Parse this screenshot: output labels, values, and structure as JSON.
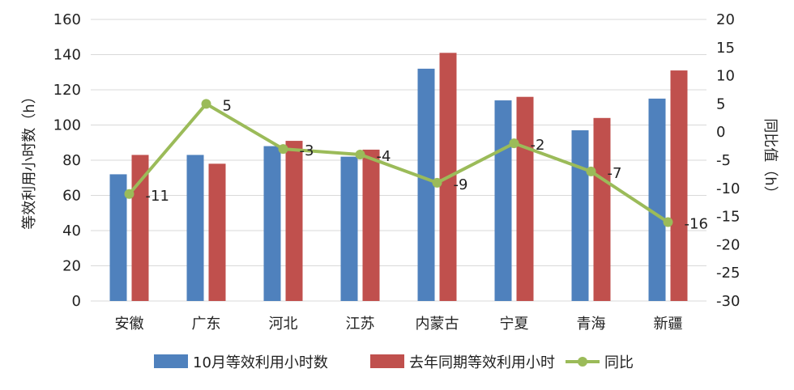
{
  "chart_data": {
    "type": "bar",
    "categories": [
      "安徽",
      "广东",
      "河北",
      "江苏",
      "内蒙古",
      "宁夏",
      "青海",
      "新疆"
    ],
    "series": [
      {
        "name": "10月等效利用小时数",
        "kind": "bar",
        "axis": "left",
        "color": "#4F81BD",
        "values": [
          72,
          83,
          88,
          82,
          132,
          114,
          97,
          115
        ]
      },
      {
        "name": "去年同期等效利用小时",
        "kind": "bar",
        "axis": "left",
        "color": "#C0504D",
        "values": [
          83,
          78,
          91,
          86,
          141,
          116,
          104,
          131
        ]
      },
      {
        "name": "同比",
        "kind": "line",
        "axis": "right",
        "color": "#9BBB59",
        "values": [
          -11,
          5,
          -3,
          -4,
          -9,
          -2,
          -7,
          -16
        ]
      }
    ],
    "ylabel": "等效利用小时数（h）",
    "ylabel_right": "同比值（h）",
    "ylim": [
      0,
      160
    ],
    "ylim_right": [
      -30,
      20
    ],
    "y_ticks": [
      "0",
      "20",
      "40",
      "60",
      "80",
      "100",
      "120",
      "140",
      "160"
    ],
    "y_ticks_right": [
      "-30",
      "-25",
      "-20",
      "-15",
      "-10",
      "-5",
      "0",
      "5",
      "10",
      "15",
      "20"
    ],
    "grid": true,
    "legend_position": "bottom"
  }
}
